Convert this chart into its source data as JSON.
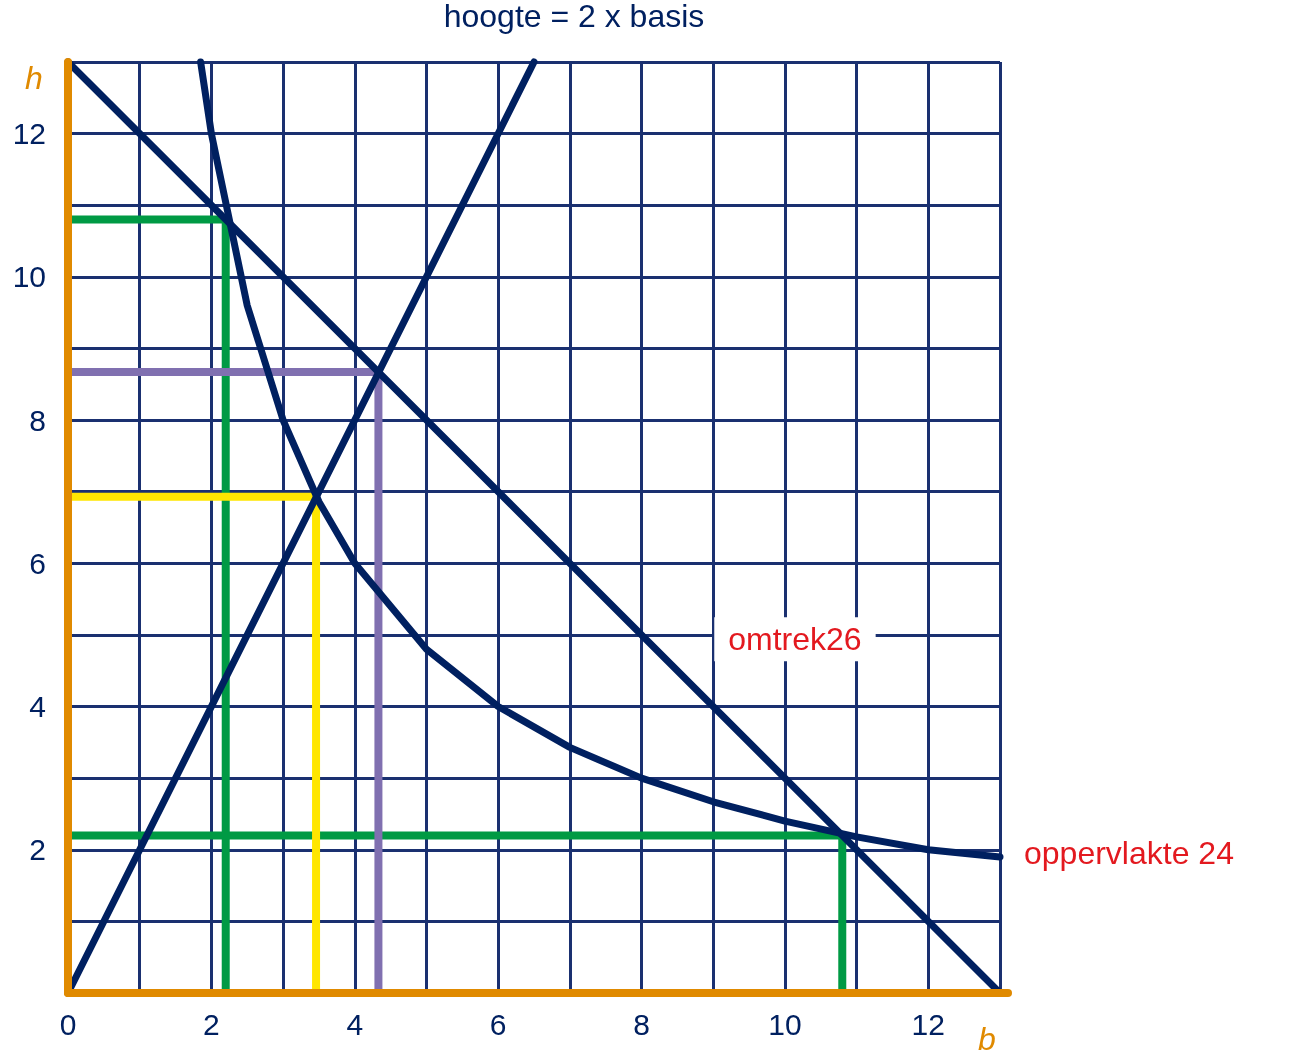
{
  "chart_data": {
    "type": "line",
    "xlabel": "b",
    "ylabel": "h",
    "xlim": [
      0,
      13
    ],
    "ylim": [
      0,
      13
    ],
    "xticks": [
      0,
      {
        "value": 1,
        "label": null
      },
      2,
      {
        "value": 3,
        "label": null
      },
      4,
      {
        "value": 5,
        "label": null
      },
      6,
      {
        "value": 7,
        "label": null
      },
      8,
      {
        "value": 9,
        "label": null
      },
      10,
      {
        "value": 11,
        "label": null
      },
      12,
      {
        "value": 13,
        "label": null
      }
    ],
    "yticks": [
      {
        "value": 0,
        "label": null
      },
      {
        "value": 1,
        "label": null
      },
      2,
      {
        "value": 3,
        "label": null
      },
      4,
      {
        "value": 5,
        "label": null
      },
      6,
      {
        "value": 7,
        "label": null
      },
      8,
      {
        "value": 9,
        "label": null
      },
      10,
      {
        "value": 11,
        "label": null
      },
      12,
      {
        "value": 13,
        "label": null
      }
    ],
    "grid": true,
    "marker": "none",
    "line_style": "solid",
    "series": [
      {
        "color": "#009a44",
        "x": [
          0,
          2.2,
          2.2
        ],
        "values": [
          10.8,
          10.8,
          0
        ]
      },
      {
        "color": "#009a44",
        "x": [
          0,
          10.8,
          10.8
        ],
        "values": [
          2.2,
          2.2,
          0
        ]
      },
      {
        "color": "#8070b0",
        "x": [
          0,
          4.33,
          4.33
        ],
        "values": [
          8.67,
          8.67,
          0
        ]
      },
      {
        "color": "#ffe600",
        "x": [
          0,
          3.46,
          3.46
        ],
        "values": [
          6.93,
          6.93,
          0
        ]
      },
      {
        "color": "#002060",
        "x": [
          0,
          13
        ],
        "values": [
          13,
          0
        ]
      },
      {
        "color": "#002060",
        "x": [
          1.85,
          2,
          2.5,
          3,
          3.5,
          4,
          5,
          6,
          7,
          8,
          9,
          10,
          11,
          12,
          13
        ],
        "values": [
          13,
          12,
          9.6,
          8,
          6.86,
          6,
          4.8,
          4,
          3.43,
          3,
          2.67,
          2.4,
          2.18,
          2,
          1.9
        ]
      },
      {
        "color": "#002060",
        "x": [
          0,
          6.5
        ],
        "values": [
          0,
          13
        ]
      }
    ],
    "annotations": [
      {
        "text": "hoogte = 2 x basis",
        "x": 6.5,
        "y": 13
      },
      "omtrek26",
      {
        "text": "oppervlakte 24",
        "x": 13,
        "y": 1.9
      }
    ]
  }
}
